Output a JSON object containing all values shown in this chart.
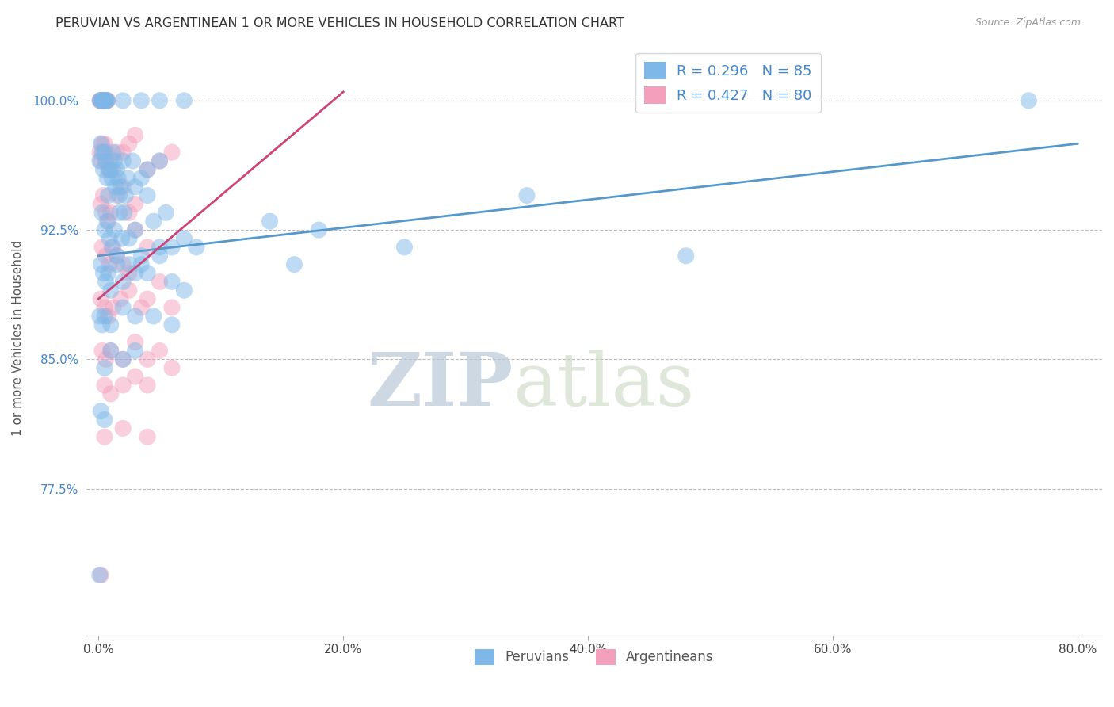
{
  "title": "PERUVIAN VS ARGENTINEAN 1 OR MORE VEHICLES IN HOUSEHOLD CORRELATION CHART",
  "source": "Source: ZipAtlas.com",
  "ylabel": "1 or more Vehicles in Household",
  "x_tick_labels": [
    "0.0%",
    "20.0%",
    "40.0%",
    "60.0%",
    "80.0%"
  ],
  "x_tick_values": [
    0.0,
    20.0,
    40.0,
    60.0,
    80.0
  ],
  "y_tick_labels": [
    "77.5%",
    "85.0%",
    "92.5%",
    "100.0%"
  ],
  "y_tick_values": [
    77.5,
    85.0,
    92.5,
    100.0
  ],
  "xlim_min": -1.0,
  "xlim_max": 82.0,
  "ylim_min": 69.0,
  "ylim_max": 103.5,
  "blue_R": 0.296,
  "blue_N": 85,
  "pink_R": 0.427,
  "pink_N": 80,
  "blue_color": "#7EB8E8",
  "pink_color": "#F4A0BC",
  "blue_line_color": "#5599CC",
  "pink_line_color": "#CC4477",
  "legend_label_blue": "Peruvians",
  "legend_label_pink": "Argentineans",
  "watermark_zip": "ZIP",
  "watermark_atlas": "atlas",
  "watermark_color": "#C8D8E8",
  "blue_line_x": [
    0.0,
    80.0
  ],
  "blue_line_y": [
    91.0,
    97.5
  ],
  "pink_line_x": [
    0.0,
    20.0
  ],
  "pink_line_y": [
    88.5,
    100.5
  ],
  "blue_scatter": [
    [
      0.15,
      100.0
    ],
    [
      0.2,
      100.0
    ],
    [
      0.25,
      100.0
    ],
    [
      0.3,
      100.0
    ],
    [
      0.35,
      100.0
    ],
    [
      0.4,
      100.0
    ],
    [
      0.45,
      100.0
    ],
    [
      0.5,
      100.0
    ],
    [
      0.55,
      100.0
    ],
    [
      0.6,
      100.0
    ],
    [
      0.65,
      100.0
    ],
    [
      0.7,
      100.0
    ],
    [
      2.0,
      100.0
    ],
    [
      3.5,
      100.0
    ],
    [
      5.0,
      100.0
    ],
    [
      7.0,
      100.0
    ],
    [
      0.1,
      96.5
    ],
    [
      0.2,
      97.5
    ],
    [
      0.3,
      97.0
    ],
    [
      0.4,
      96.0
    ],
    [
      0.5,
      97.0
    ],
    [
      0.6,
      96.5
    ],
    [
      0.7,
      95.5
    ],
    [
      0.8,
      94.5
    ],
    [
      0.9,
      96.0
    ],
    [
      1.0,
      96.0
    ],
    [
      1.1,
      95.5
    ],
    [
      1.2,
      97.0
    ],
    [
      1.3,
      96.5
    ],
    [
      1.4,
      95.0
    ],
    [
      1.5,
      96.0
    ],
    [
      1.6,
      95.5
    ],
    [
      1.7,
      94.5
    ],
    [
      1.8,
      95.0
    ],
    [
      2.0,
      96.5
    ],
    [
      2.2,
      94.5
    ],
    [
      2.4,
      95.5
    ],
    [
      2.8,
      96.5
    ],
    [
      3.0,
      95.0
    ],
    [
      3.5,
      95.5
    ],
    [
      4.0,
      96.0
    ],
    [
      5.0,
      96.5
    ],
    [
      0.3,
      93.5
    ],
    [
      0.5,
      92.5
    ],
    [
      0.7,
      93.0
    ],
    [
      0.9,
      92.0
    ],
    [
      1.1,
      91.5
    ],
    [
      1.3,
      92.5
    ],
    [
      1.5,
      91.0
    ],
    [
      1.7,
      93.5
    ],
    [
      1.9,
      92.0
    ],
    [
      2.1,
      93.5
    ],
    [
      2.5,
      92.0
    ],
    [
      3.0,
      92.5
    ],
    [
      3.5,
      91.0
    ],
    [
      4.0,
      94.5
    ],
    [
      4.5,
      93.0
    ],
    [
      5.0,
      91.5
    ],
    [
      5.5,
      93.5
    ],
    [
      6.0,
      91.5
    ],
    [
      7.0,
      92.0
    ],
    [
      8.0,
      91.5
    ],
    [
      0.2,
      90.5
    ],
    [
      0.4,
      90.0
    ],
    [
      0.6,
      89.5
    ],
    [
      0.8,
      90.0
    ],
    [
      1.0,
      89.0
    ],
    [
      1.5,
      90.5
    ],
    [
      2.0,
      89.5
    ],
    [
      2.5,
      90.5
    ],
    [
      3.0,
      90.0
    ],
    [
      3.5,
      90.5
    ],
    [
      4.0,
      90.0
    ],
    [
      5.0,
      91.0
    ],
    [
      6.0,
      89.5
    ],
    [
      7.0,
      89.0
    ],
    [
      0.1,
      87.5
    ],
    [
      0.3,
      87.0
    ],
    [
      0.5,
      87.5
    ],
    [
      1.0,
      87.0
    ],
    [
      2.0,
      88.0
    ],
    [
      3.0,
      87.5
    ],
    [
      4.5,
      87.5
    ],
    [
      6.0,
      87.0
    ],
    [
      0.5,
      84.5
    ],
    [
      1.0,
      85.5
    ],
    [
      2.0,
      85.0
    ],
    [
      3.0,
      85.5
    ],
    [
      0.2,
      82.0
    ],
    [
      0.5,
      81.5
    ],
    [
      14.0,
      93.0
    ],
    [
      16.0,
      90.5
    ],
    [
      18.0,
      92.5
    ],
    [
      25.0,
      91.5
    ],
    [
      35.0,
      94.5
    ],
    [
      48.0,
      91.0
    ],
    [
      76.0,
      100.0
    ],
    [
      0.1,
      72.5
    ]
  ],
  "pink_scatter": [
    [
      0.1,
      100.0
    ],
    [
      0.15,
      100.0
    ],
    [
      0.2,
      100.0
    ],
    [
      0.25,
      100.0
    ],
    [
      0.3,
      100.0
    ],
    [
      0.35,
      100.0
    ],
    [
      0.4,
      100.0
    ],
    [
      0.45,
      100.0
    ],
    [
      0.5,
      100.0
    ],
    [
      0.55,
      100.0
    ],
    [
      0.6,
      100.0
    ],
    [
      0.65,
      100.0
    ],
    [
      0.7,
      100.0
    ],
    [
      0.75,
      100.0
    ],
    [
      0.1,
      97.0
    ],
    [
      0.2,
      96.5
    ],
    [
      0.3,
      97.5
    ],
    [
      0.4,
      97.0
    ],
    [
      0.5,
      97.5
    ],
    [
      0.6,
      96.5
    ],
    [
      0.7,
      97.0
    ],
    [
      0.8,
      96.0
    ],
    [
      0.9,
      96.0
    ],
    [
      1.0,
      96.5
    ],
    [
      1.2,
      96.0
    ],
    [
      1.5,
      97.0
    ],
    [
      2.0,
      97.0
    ],
    [
      2.5,
      97.5
    ],
    [
      3.0,
      98.0
    ],
    [
      0.2,
      94.0
    ],
    [
      0.4,
      94.5
    ],
    [
      0.6,
      93.5
    ],
    [
      0.8,
      93.0
    ],
    [
      1.0,
      93.5
    ],
    [
      1.5,
      94.5
    ],
    [
      2.0,
      95.0
    ],
    [
      2.5,
      93.5
    ],
    [
      3.0,
      94.0
    ],
    [
      4.0,
      96.0
    ],
    [
      5.0,
      96.5
    ],
    [
      6.0,
      97.0
    ],
    [
      0.3,
      91.5
    ],
    [
      0.6,
      91.0
    ],
    [
      0.9,
      90.5
    ],
    [
      1.2,
      91.5
    ],
    [
      1.5,
      91.0
    ],
    [
      2.0,
      90.5
    ],
    [
      2.5,
      90.0
    ],
    [
      3.0,
      92.5
    ],
    [
      4.0,
      91.5
    ],
    [
      0.2,
      88.5
    ],
    [
      0.5,
      88.0
    ],
    [
      0.8,
      87.5
    ],
    [
      1.2,
      88.0
    ],
    [
      1.8,
      88.5
    ],
    [
      2.5,
      89.0
    ],
    [
      3.5,
      88.0
    ],
    [
      4.0,
      88.5
    ],
    [
      5.0,
      89.5
    ],
    [
      6.0,
      88.0
    ],
    [
      0.3,
      85.5
    ],
    [
      0.6,
      85.0
    ],
    [
      1.0,
      85.5
    ],
    [
      2.0,
      85.0
    ],
    [
      3.0,
      86.0
    ],
    [
      4.0,
      85.0
    ],
    [
      5.0,
      85.5
    ],
    [
      6.0,
      84.5
    ],
    [
      0.5,
      83.5
    ],
    [
      1.0,
      83.0
    ],
    [
      2.0,
      83.5
    ],
    [
      3.0,
      84.0
    ],
    [
      4.0,
      83.5
    ],
    [
      0.5,
      80.5
    ],
    [
      2.0,
      81.0
    ],
    [
      4.0,
      80.5
    ],
    [
      0.2,
      72.5
    ]
  ]
}
